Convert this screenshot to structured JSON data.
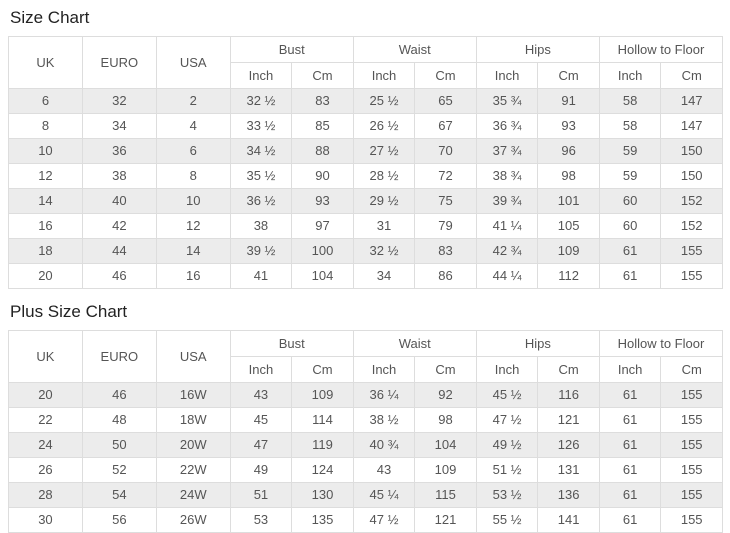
{
  "colors": {
    "stripe": "#ececec",
    "border": "#dddddd",
    "cell_text": "#555555",
    "title_text": "#222222"
  },
  "sections": [
    {
      "title": "Size Chart",
      "table": {
        "group_headers": [
          {
            "label": "UK",
            "colspan": 1,
            "rowspan": 2
          },
          {
            "label": "EURO",
            "colspan": 1,
            "rowspan": 2
          },
          {
            "label": "USA",
            "colspan": 1,
            "rowspan": 2
          },
          {
            "label": "Bust",
            "colspan": 2,
            "rowspan": 1
          },
          {
            "label": "Waist",
            "colspan": 2,
            "rowspan": 1
          },
          {
            "label": "Hips",
            "colspan": 2,
            "rowspan": 1
          },
          {
            "label": "Hollow to Floor",
            "colspan": 2,
            "rowspan": 1
          }
        ],
        "sub_headers": [
          "Inch",
          "Cm",
          "Inch",
          "Cm",
          "Inch",
          "Cm",
          "Inch",
          "Cm"
        ],
        "rows": [
          [
            "6",
            "32",
            "2",
            "32 ½",
            "83",
            "25 ½",
            "65",
            "35 ¾",
            "91",
            "58",
            "147"
          ],
          [
            "8",
            "34",
            "4",
            "33 ½",
            "85",
            "26 ½",
            "67",
            "36 ¾",
            "93",
            "58",
            "147"
          ],
          [
            "10",
            "36",
            "6",
            "34 ½",
            "88",
            "27 ½",
            "70",
            "37 ¾",
            "96",
            "59",
            "150"
          ],
          [
            "12",
            "38",
            "8",
            "35 ½",
            "90",
            "28 ½",
            "72",
            "38 ¾",
            "98",
            "59",
            "150"
          ],
          [
            "14",
            "40",
            "10",
            "36 ½",
            "93",
            "29 ½",
            "75",
            "39 ¾",
            "101",
            "60",
            "152"
          ],
          [
            "16",
            "42",
            "12",
            "38",
            "97",
            "31",
            "79",
            "41 ¼",
            "105",
            "60",
            "152"
          ],
          [
            "18",
            "44",
            "14",
            "39 ½",
            "100",
            "32 ½",
            "83",
            "42 ¾",
            "109",
            "61",
            "155"
          ],
          [
            "20",
            "46",
            "16",
            "41",
            "104",
            "34",
            "86",
            "44 ¼",
            "112",
            "61",
            "155"
          ]
        ]
      }
    },
    {
      "title": "Plus Size Chart",
      "table": {
        "group_headers": [
          {
            "label": "UK",
            "colspan": 1,
            "rowspan": 2
          },
          {
            "label": "EURO",
            "colspan": 1,
            "rowspan": 2
          },
          {
            "label": "USA",
            "colspan": 1,
            "rowspan": 2
          },
          {
            "label": "Bust",
            "colspan": 2,
            "rowspan": 1
          },
          {
            "label": "Waist",
            "colspan": 2,
            "rowspan": 1
          },
          {
            "label": "Hips",
            "colspan": 2,
            "rowspan": 1
          },
          {
            "label": "Hollow to Floor",
            "colspan": 2,
            "rowspan": 1
          }
        ],
        "sub_headers": [
          "Inch",
          "Cm",
          "Inch",
          "Cm",
          "Inch",
          "Cm",
          "Inch",
          "Cm"
        ],
        "rows": [
          [
            "20",
            "46",
            "16W",
            "43",
            "109",
            "36 ¼",
            "92",
            "45 ½",
            "116",
            "61",
            "155"
          ],
          [
            "22",
            "48",
            "18W",
            "45",
            "114",
            "38 ½",
            "98",
            "47 ½",
            "121",
            "61",
            "155"
          ],
          [
            "24",
            "50",
            "20W",
            "47",
            "119",
            "40 ¾",
            "104",
            "49 ½",
            "126",
            "61",
            "155"
          ],
          [
            "26",
            "52",
            "22W",
            "49",
            "124",
            "43",
            "109",
            "51 ½",
            "131",
            "61",
            "155"
          ],
          [
            "28",
            "54",
            "24W",
            "51",
            "130",
            "45 ¼",
            "115",
            "53 ½",
            "136",
            "61",
            "155"
          ],
          [
            "30",
            "56",
            "26W",
            "53",
            "135",
            "47 ½",
            "121",
            "55 ½",
            "141",
            "61",
            "155"
          ]
        ]
      }
    }
  ]
}
